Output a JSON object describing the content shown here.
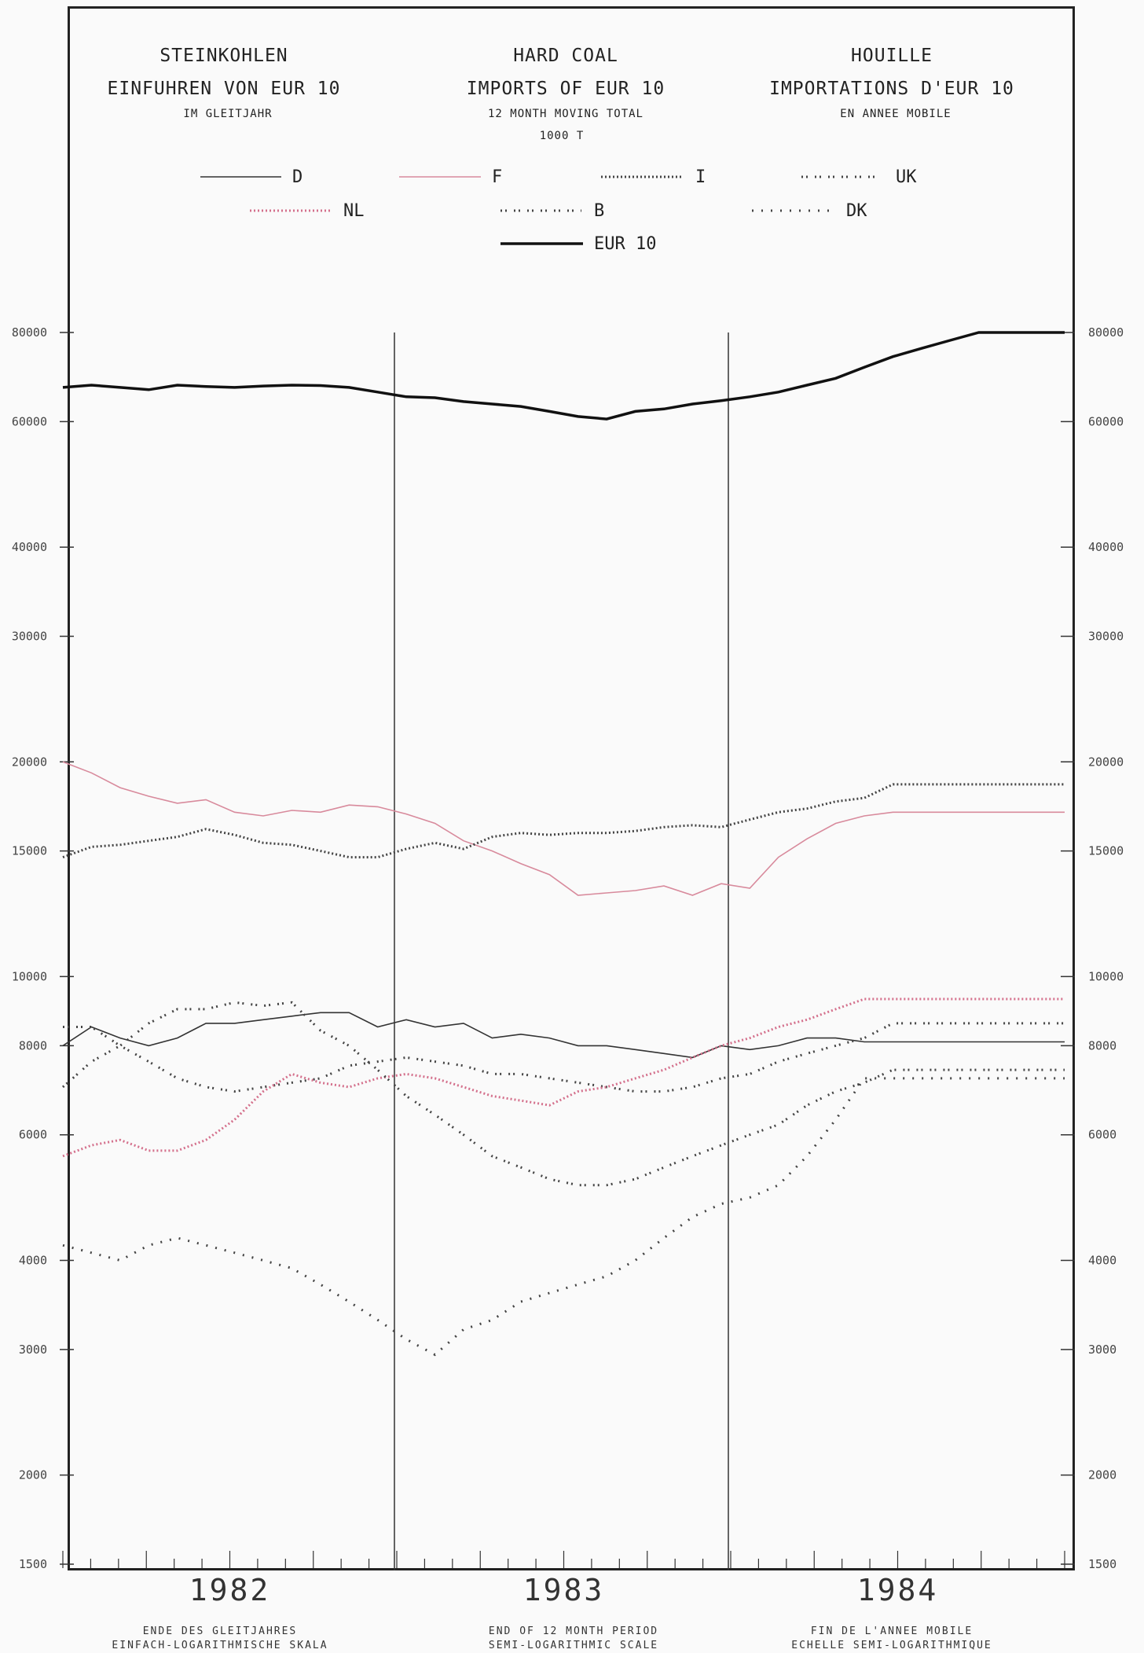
{
  "titles": {
    "de": {
      "main": "STEINKOHLEN",
      "sub": "EINFUHREN VON EUR 10",
      "note": "IM GLEITJAHR"
    },
    "en": {
      "main": "HARD COAL",
      "sub": "IMPORTS OF EUR 10",
      "note": "12 MONTH MOVING TOTAL",
      "unit": "1000 T"
    },
    "fr": {
      "main": "HOUILLE",
      "sub": "IMPORTATIONS D'EUR 10",
      "note": "EN ANNEE MOBILE"
    }
  },
  "footer": {
    "de": {
      "line1": "ENDE DES GLEITJAHRES",
      "line2": "EINFACH-LOGARITHMISCHE SKALA"
    },
    "en": {
      "line1": "END OF 12 MONTH PERIOD",
      "line2": "SEMI-LOGARITHMIC SCALE"
    },
    "fr": {
      "line1": "FIN DE L'ANNEE MOBILE",
      "line2": "ECHELLE SEMI-LOGARITHMIQUE"
    }
  },
  "chart_data": {
    "type": "line",
    "y_scale": "log",
    "ylim": [
      1500,
      80000
    ],
    "ytick_labels": [
      "80000",
      "60000",
      "40000",
      "30000",
      "20000",
      "15000",
      "10000",
      "8000",
      "6000",
      "4000",
      "3000",
      "2000",
      "1500"
    ],
    "ytick_values": [
      80000,
      60000,
      40000,
      30000,
      20000,
      15000,
      10000,
      8000,
      6000,
      4000,
      3000,
      2000,
      1500
    ],
    "years": [
      "1982",
      "1983",
      "1984"
    ],
    "x": [
      "1982-01",
      "1982-02",
      "1982-03",
      "1982-04",
      "1982-05",
      "1982-06",
      "1982-07",
      "1982-08",
      "1982-09",
      "1982-10",
      "1982-11",
      "1982-12",
      "1983-01",
      "1983-02",
      "1983-03",
      "1983-04",
      "1983-05",
      "1983-06",
      "1983-07",
      "1983-08",
      "1983-09",
      "1983-10",
      "1983-11",
      "1983-12",
      "1984-01",
      "1984-02",
      "1984-03",
      "1984-04",
      "1984-05",
      "1984-06",
      "1984-07",
      "1984-08",
      "1984-09",
      "1984-10",
      "1984-11",
      "1984-12"
    ],
    "series": [
      {
        "name": "EUR 10",
        "color": "#111111",
        "style": "thick",
        "values": [
          67000,
          67500,
          67000,
          66500,
          67500,
          67200,
          67000,
          67300,
          67500,
          67400,
          67000,
          66000,
          65000,
          64800,
          64000,
          63500,
          63000,
          62000,
          61000,
          60500,
          62000,
          62500,
          63500,
          64200,
          65000,
          66000,
          67500,
          69000,
          71500,
          74000,
          76000,
          78000,
          80000,
          80000,
          80000,
          80000
        ]
      },
      {
        "name": "F",
        "color": "#d88a9c",
        "style": "thin",
        "values": [
          20000,
          19300,
          18400,
          17900,
          17500,
          17700,
          17000,
          16800,
          17100,
          17000,
          17400,
          17300,
          16900,
          16400,
          15500,
          15000,
          14400,
          13900,
          13000,
          13100,
          13200,
          13400,
          13000,
          13500,
          13300,
          14700,
          15600,
          16400,
          16800,
          17000,
          17000,
          17000,
          17000,
          17000,
          17000,
          17000
        ]
      },
      {
        "name": "I",
        "color": "#444444",
        "style": "dense",
        "values": [
          14700,
          15200,
          15300,
          15500,
          15700,
          16100,
          15800,
          15400,
          15300,
          15000,
          14700,
          14700,
          15100,
          15400,
          15100,
          15700,
          15900,
          15800,
          15900,
          15900,
          16000,
          16200,
          16300,
          16200,
          16600,
          17000,
          17200,
          17600,
          17800,
          18600,
          18600,
          18600,
          18600,
          18600,
          18600,
          18600
        ]
      },
      {
        "name": "D",
        "color": "#333333",
        "style": "thin",
        "values": [
          8000,
          8500,
          8200,
          8000,
          8200,
          8600,
          8600,
          8700,
          8800,
          8900,
          8900,
          8500,
          8700,
          8500,
          8600,
          8200,
          8300,
          8200,
          8000,
          8000,
          7900,
          7800,
          7700,
          8000,
          7900,
          8000,
          8200,
          8200,
          8100,
          8100,
          8100,
          8100,
          8100,
          8100,
          8100,
          8100
        ]
      },
      {
        "name": "UK",
        "color": "#444444",
        "style": "dashdot",
        "values": [
          8500,
          8500,
          8000,
          7600,
          7200,
          7000,
          6900,
          7000,
          7100,
          7200,
          7500,
          7600,
          7700,
          7600,
          7500,
          7300,
          7300,
          7200,
          7100,
          7000,
          6900,
          6900,
          7000,
          7200,
          7300,
          7600,
          7800,
          8000,
          8200,
          8600,
          8600,
          8600,
          8600,
          8600,
          8600,
          8600
        ]
      },
      {
        "name": "NL",
        "color": "#d4708c",
        "style": "dense",
        "values": [
          5600,
          5800,
          5900,
          5700,
          5700,
          5900,
          6300,
          6900,
          7300,
          7100,
          7000,
          7200,
          7300,
          7200,
          7000,
          6800,
          6700,
          6600,
          6900,
          7000,
          7200,
          7400,
          7700,
          8000,
          8200,
          8500,
          8700,
          9000,
          9300,
          9300,
          9300,
          9300,
          9300,
          9300,
          9300,
          9300
        ]
      },
      {
        "name": "B",
        "color": "#444444",
        "style": "dashdot",
        "values": [
          7000,
          7600,
          8000,
          8600,
          9000,
          9000,
          9200,
          9100,
          9200,
          8400,
          8000,
          7400,
          6800,
          6400,
          6000,
          5600,
          5400,
          5200,
          5100,
          5100,
          5200,
          5400,
          5600,
          5800,
          6000,
          6200,
          6600,
          6900,
          7100,
          7400,
          7400,
          7400,
          7400,
          7400,
          7400,
          7400
        ]
      },
      {
        "name": "DK",
        "color": "#444444",
        "style": "sparse",
        "values": [
          4200,
          4100,
          4000,
          4200,
          4300,
          4200,
          4100,
          4000,
          3900,
          3700,
          3500,
          3300,
          3100,
          2950,
          3200,
          3300,
          3500,
          3600,
          3700,
          3800,
          4000,
          4300,
          4600,
          4800,
          4900,
          5100,
          5600,
          6300,
          7200,
          7200,
          7200,
          7200,
          7200,
          7200,
          7200,
          7200
        ]
      }
    ],
    "legend": [
      {
        "name": "D",
        "style": "thin",
        "color": "#333333"
      },
      {
        "name": "F",
        "style": "thin",
        "color": "#d88a9c"
      },
      {
        "name": "I",
        "style": "dense",
        "color": "#444444"
      },
      {
        "name": "UK",
        "style": "dashdot",
        "color": "#444444"
      },
      {
        "name": "NL",
        "style": "dense",
        "color": "#d4708c"
      },
      {
        "name": "B",
        "style": "dashdot",
        "color": "#444444"
      },
      {
        "name": "DK",
        "style": "sparse",
        "color": "#444444"
      },
      {
        "name": "EUR 10",
        "style": "thick",
        "color": "#111111"
      }
    ]
  }
}
